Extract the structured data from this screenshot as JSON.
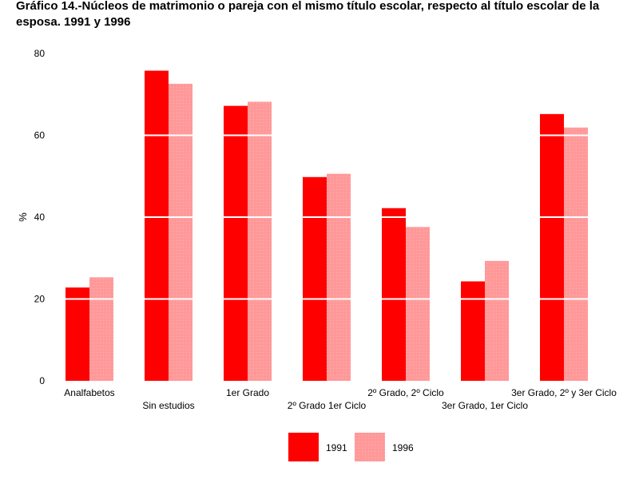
{
  "chart_data": {
    "type": "bar",
    "title": "Gráfico 14.-Núcleos de matrimonio o pareja con el mismo título escolar, respecto al título escolar de la esposa. 1991 y 1996",
    "xlabel": "",
    "ylabel": "%",
    "ylim": [
      0,
      80
    ],
    "yticks": [
      "0",
      "20",
      "40",
      "60",
      "80"
    ],
    "grid": true,
    "legend_position": "bottom-center",
    "categories": [
      "Analfabetos",
      "Sin estudios",
      "1er Grado",
      "2º Grado 1er Ciclo",
      "2º Grado, 2º Ciclo",
      "3er Grado, 1er Ciclo",
      "3er Grado, 2º y 3er Ciclo"
    ],
    "series": [
      {
        "name": "1991",
        "color": "#ff0000",
        "values": [
          22.8,
          75.8,
          67.2,
          49.8,
          42.2,
          24.3,
          65.2
        ]
      },
      {
        "name": "1996",
        "color": "#ff9999",
        "values": [
          25.3,
          72.6,
          68.2,
          50.6,
          37.6,
          29.3,
          61.9
        ]
      }
    ]
  }
}
